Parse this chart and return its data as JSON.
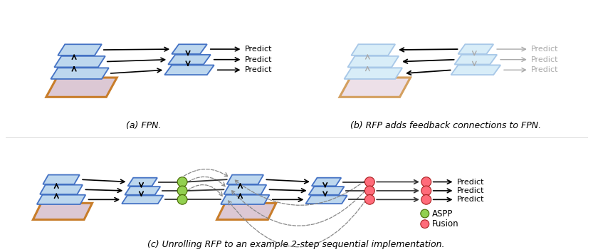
{
  "background": "#ffffff",
  "blue_edge": "#4472C4",
  "blue_fill": "#BDD7EE",
  "blue_edge_faded": "#A8C8E8",
  "blue_fill_faded": "#D8EDF8",
  "orange_edge": "#C87D2A",
  "image_fill": "#DCC8D4",
  "image_fill_faded": "#EDE0E8",
  "arrow_color": "#000000",
  "gray_color": "#AAAAAA",
  "green_circle": "#92D050",
  "pink_circle": "#FF6B7A",
  "label_a": "(a) FPN.",
  "label_b": "(b) RFP adds feedback connections to FPN.",
  "label_c": "(c) Unrolling RFP to an example 2-step sequential implementation.",
  "legend_aspp": "ASPP",
  "legend_fusion": "Fusion"
}
